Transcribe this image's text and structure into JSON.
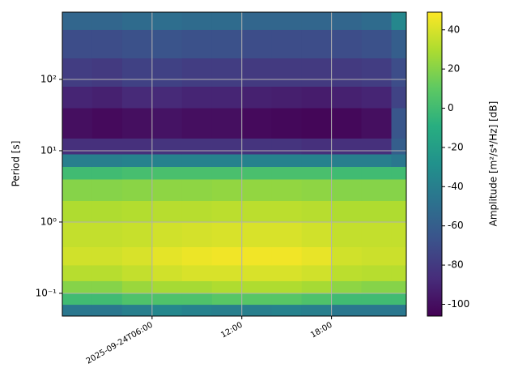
{
  "chart_data": {
    "type": "heatmap",
    "ylabel": "Period [s]",
    "colorbar_label": "Amplitude [m²/s⁴/Hz] [dB]",
    "colormap": "viridis",
    "y_log": true,
    "grid": true,
    "x": [
      0,
      2,
      4,
      6,
      8,
      10,
      12,
      14,
      16,
      18,
      20,
      22,
      23
    ],
    "y": [
      0.048,
      0.07,
      0.1,
      0.15,
      0.25,
      0.45,
      1,
      2,
      4,
      6,
      9,
      15,
      40,
      80,
      200,
      500,
      877
    ],
    "z": [
      [
        -45,
        -45,
        -40,
        -35,
        -38,
        -40,
        -40,
        -38,
        -40,
        -45,
        -45,
        -45
      ],
      [
        0,
        0,
        5,
        5,
        5,
        8,
        8,
        8,
        5,
        0,
        0,
        0
      ],
      [
        20,
        20,
        25,
        28,
        28,
        30,
        30,
        30,
        28,
        22,
        20,
        20
      ],
      [
        32,
        32,
        35,
        38,
        40,
        40,
        40,
        40,
        38,
        33,
        32,
        32
      ],
      [
        38,
        38,
        40,
        43,
        45,
        46,
        46,
        46,
        44,
        38,
        37,
        37
      ],
      [
        35,
        35,
        36,
        38,
        39,
        40,
        40,
        40,
        38,
        35,
        35,
        35
      ],
      [
        30,
        30,
        31,
        32,
        32,
        33,
        33,
        33,
        32,
        30,
        30,
        30
      ],
      [
        20,
        20,
        21,
        22,
        22,
        23,
        23,
        23,
        22,
        20,
        20,
        20
      ],
      [
        0,
        0,
        2,
        3,
        3,
        3,
        3,
        3,
        3,
        0,
        0,
        0
      ],
      [
        -40,
        -40,
        -38,
        -38,
        -38,
        -38,
        -38,
        -38,
        -38,
        -40,
        -40,
        -45
      ],
      [
        -85,
        -85,
        -85,
        -83,
        -83,
        -83,
        -83,
        -83,
        -85,
        -85,
        -85,
        -60
      ],
      [
        -100,
        -102,
        -100,
        -98,
        -100,
        -100,
        -102,
        -103,
        -104,
        -103,
        -100,
        -65
      ],
      [
        -90,
        -92,
        -88,
        -88,
        -90,
        -90,
        -92,
        -93,
        -94,
        -92,
        -90,
        -75
      ],
      [
        -78,
        -80,
        -76,
        -76,
        -78,
        -78,
        -80,
        -80,
        -80,
        -80,
        -78,
        -70
      ],
      [
        -70,
        -70,
        -68,
        -66,
        -68,
        -68,
        -70,
        -70,
        -70,
        -70,
        -68,
        -60
      ],
      [
        -55,
        -55,
        -52,
        -50,
        -52,
        -52,
        -55,
        -55,
        -55,
        -55,
        -52,
        -35
      ]
    ],
    "xlim": [
      0,
      23
    ],
    "xticks": [
      {
        "value": 6,
        "label": "2025-09-24T06:00"
      },
      {
        "value": 12,
        "label": "12:00"
      },
      {
        "value": 18,
        "label": "18:00"
      }
    ],
    "ylim": [
      0.048,
      877
    ],
    "yticks": [
      {
        "value": 0.1,
        "label": "10⁻¹"
      },
      {
        "value": 1,
        "label": "10⁰"
      },
      {
        "value": 10,
        "label": "10¹"
      },
      {
        "value": 100,
        "label": "10²"
      }
    ],
    "zlim": [
      -106,
      49
    ],
    "zticks": [
      -100,
      -80,
      -60,
      -40,
      -20,
      0,
      20,
      40
    ]
  }
}
